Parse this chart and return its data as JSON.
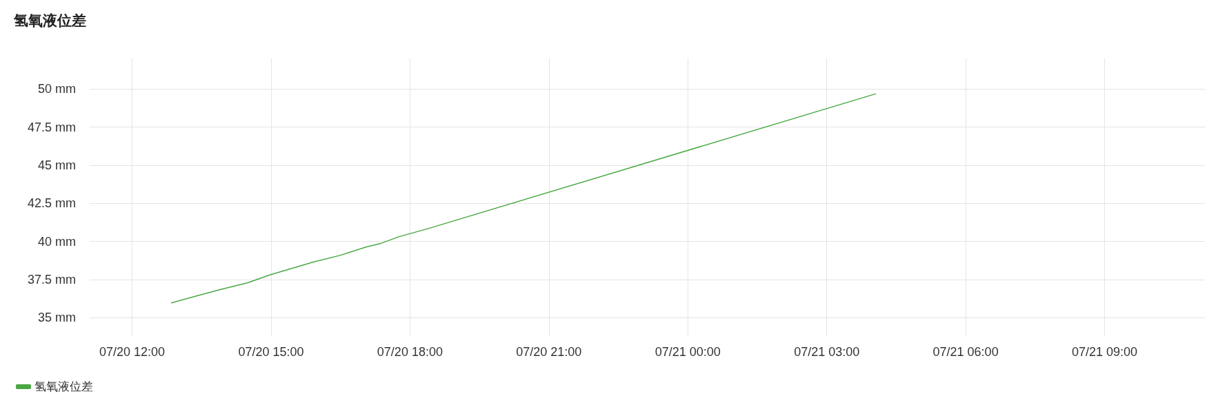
{
  "chart_data": {
    "type": "line",
    "title": "氢氧液位差",
    "series": [
      {
        "name": "氢氧液位差",
        "color": "#4aa844",
        "x": [
          "--07-20T12:51",
          "--07-20T13:25",
          "--07-20T13:55",
          "--07-20T14:30",
          "--07-20T14:59",
          "--07-20T15:54",
          "--07-20T16:30",
          "--07-20T17:03",
          "--07-20T17:23",
          "--07-20T17:46",
          "--07-20T18:23",
          "--07-21T04:03"
        ],
        "values": [
          35.98,
          36.45,
          36.86,
          37.3,
          37.82,
          38.64,
          39.1,
          39.64,
          39.89,
          40.32,
          40.84,
          49.68
        ]
      }
    ],
    "xlim": [
      "--07-20T11:05",
      "--07-21T11:10"
    ],
    "xticks": [
      {
        "value": "--07-20T12:00",
        "label": "07/20 12:00"
      },
      {
        "value": "--07-20T15:00",
        "label": "07/20 15:00"
      },
      {
        "value": "--07-20T18:00",
        "label": "07/20 18:00"
      },
      {
        "value": "--07-20T21:00",
        "label": "07/20 21:00"
      },
      {
        "value": "--07-21T00:00",
        "label": "07/21 00:00"
      },
      {
        "value": "--07-21T03:00",
        "label": "07/21 03:00"
      },
      {
        "value": "--07-21T06:00",
        "label": "07/21 06:00"
      },
      {
        "value": "--07-21T09:00",
        "label": "07/21 09:00"
      }
    ],
    "ylim": [
      33.8,
      52
    ],
    "yticks": [
      {
        "value": 35,
        "label": "35 mm"
      },
      {
        "value": 37.5,
        "label": "37.5 mm"
      },
      {
        "value": 40,
        "label": "40 mm"
      },
      {
        "value": 42.5,
        "label": "42.5 mm"
      },
      {
        "value": 45,
        "label": "45 mm"
      },
      {
        "value": 47.5,
        "label": "47.5 mm"
      },
      {
        "value": 50,
        "label": "50 mm"
      }
    ],
    "grid": true,
    "legend": "bottom left",
    "marker": "none",
    "line_style": "solid"
  }
}
